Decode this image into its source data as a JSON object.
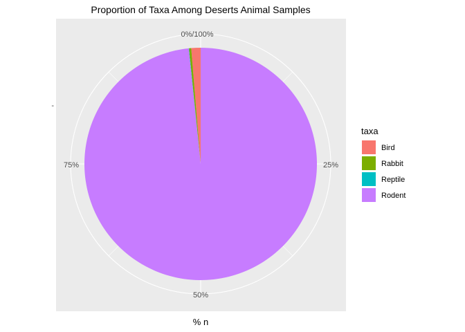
{
  "chart_data": {
    "type": "pie",
    "title": "Proportion of Taxa Among Deserts Animal Samples",
    "xlabel": "% n",
    "ylabel": "",
    "y_tick": "-",
    "theta_ticks": [
      "0%/100%",
      "25%",
      "50%",
      "75%"
    ],
    "theta_tick_values": [
      0,
      0.25,
      0.5,
      0.75
    ],
    "legend_title": "taxa",
    "legend_position": "right",
    "grid": true,
    "categories": [
      "Bird",
      "Rabbit",
      "Reptile",
      "Rodent"
    ],
    "values": [
      0.013,
      0.003,
      0.0005,
      0.9835
    ],
    "colors": {
      "Bird": "#F8766D",
      "Rabbit": "#7CAE00",
      "Reptile": "#00BFC4",
      "Rodent": "#C77CFF",
      "panel_background": "#EBEBEB",
      "grid": "#FFFFFF"
    }
  }
}
